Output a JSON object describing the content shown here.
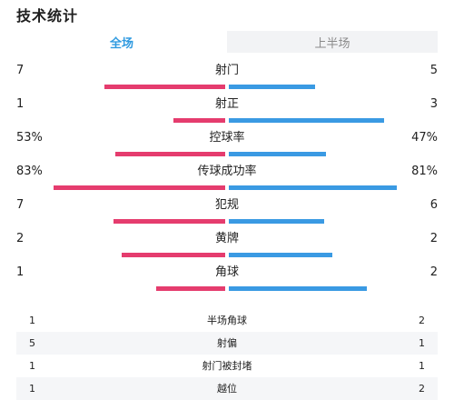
{
  "title": "技术统计",
  "tabs": [
    {
      "label": "全场",
      "active": true
    },
    {
      "label": "上半场",
      "active": false
    }
  ],
  "colors": {
    "home": "#e53c6e",
    "away": "#3a9ae3",
    "active_tab": "#2f9ae0"
  },
  "stats": [
    {
      "label": "射门",
      "home": "7",
      "away": "5",
      "home_share": 0.583,
      "away_share": 0.417
    },
    {
      "label": "射正",
      "home": "1",
      "away": "3",
      "home_share": 0.25,
      "away_share": 0.75
    },
    {
      "label": "控球率",
      "home": "53%",
      "away": "47%",
      "home_share": 0.53,
      "away_share": 0.47
    },
    {
      "label": "传球成功率",
      "home": "83%",
      "away": "81%",
      "home_share": 0.83,
      "away_share": 0.81
    },
    {
      "label": "犯规",
      "home": "7",
      "away": "6",
      "home_share": 0.538,
      "away_share": 0.462
    },
    {
      "label": "黄牌",
      "home": "2",
      "away": "2",
      "home_share": 0.5,
      "away_share": 0.5
    },
    {
      "label": "角球",
      "home": "1",
      "away": "2",
      "home_share": 0.333,
      "away_share": 0.667
    }
  ],
  "table": [
    {
      "label": "半场角球",
      "home": "1",
      "away": "2"
    },
    {
      "label": "射偏",
      "home": "5",
      "away": "1"
    },
    {
      "label": "射门被封堵",
      "home": "1",
      "away": "1"
    },
    {
      "label": "越位",
      "home": "1",
      "away": "2"
    }
  ]
}
